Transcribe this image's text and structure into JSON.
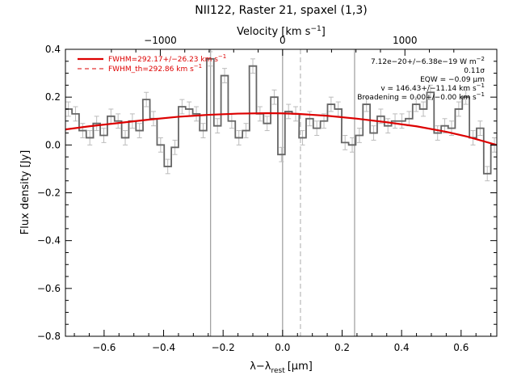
{
  "chart_data": {
    "type": "line",
    "title": "NII122, Raster 21, spaxel (1,3)",
    "xlabel": "λ−λ",
    "xlabel_sub": "rest",
    "xlabel_unit": "[μm]",
    "ylabel": "Flux density [Jy]",
    "top_axis_label": "Velocity [km s",
    "top_axis_label_sup": "−1",
    "top_axis_label_end": "]",
    "xlim": [
      -0.73,
      0.72
    ],
    "ylim": [
      -0.8,
      0.4
    ],
    "x_ticks": [
      -0.6,
      -0.4,
      -0.2,
      0.0,
      0.2,
      0.4,
      0.6
    ],
    "x_tick_labels": [
      "−0.6",
      "−0.4",
      "−0.2",
      "0.0",
      "0.2",
      "0.4",
      "0.6"
    ],
    "y_ticks": [
      -0.8,
      -0.6,
      -0.4,
      -0.2,
      0.0,
      0.2,
      0.4
    ],
    "y_tick_labels": [
      "−0.8",
      "−0.6",
      "−0.4",
      "−0.2",
      "0.0",
      "0.2",
      "0.4"
    ],
    "top_ticks_um": [
      -0.4111,
      0.0,
      0.4111
    ],
    "top_tick_labels": [
      "−1000",
      "0",
      "1000"
    ],
    "vertical_lines": [
      {
        "x": -0.242,
        "style": "solid",
        "color": "#888888"
      },
      {
        "x": 0.0,
        "style": "solid",
        "color": "#888888"
      },
      {
        "x": 0.06,
        "style": "dashed",
        "color": "#aaaaaa"
      },
      {
        "x": 0.242,
        "style": "solid",
        "color": "#888888"
      }
    ],
    "series": [
      {
        "name": "data",
        "kind": "step",
        "color": "#666666",
        "error_color": "#bbbbbb",
        "bin_width": 0.0238,
        "x": [
          -0.72,
          -0.696,
          -0.672,
          -0.648,
          -0.625,
          -0.601,
          -0.577,
          -0.553,
          -0.529,
          -0.505,
          -0.481,
          -0.458,
          -0.434,
          -0.41,
          -0.386,
          -0.362,
          -0.338,
          -0.314,
          -0.29,
          -0.267,
          -0.243,
          -0.219,
          -0.195,
          -0.171,
          -0.147,
          -0.123,
          -0.1,
          -0.076,
          -0.052,
          -0.028,
          -0.004,
          0.02,
          0.044,
          0.067,
          0.091,
          0.115,
          0.139,
          0.163,
          0.187,
          0.21,
          0.234,
          0.258,
          0.282,
          0.306,
          0.33,
          0.354,
          0.378,
          0.401,
          0.425,
          0.449,
          0.473,
          0.497,
          0.521,
          0.545,
          0.568,
          0.592,
          0.616,
          0.64,
          0.664,
          0.688,
          0.712
        ],
        "y": [
          0.15,
          0.13,
          0.06,
          0.03,
          0.09,
          0.04,
          0.12,
          0.1,
          0.03,
          0.1,
          0.06,
          0.19,
          0.11,
          0.0,
          -0.09,
          -0.01,
          0.16,
          0.15,
          0.13,
          0.06,
          0.36,
          0.08,
          0.29,
          0.1,
          0.03,
          0.06,
          0.33,
          0.13,
          0.09,
          0.2,
          -0.04,
          0.14,
          0.13,
          0.03,
          0.11,
          0.07,
          0.1,
          0.17,
          0.15,
          0.01,
          0.0,
          0.04,
          0.17,
          0.05,
          0.12,
          0.08,
          0.1,
          0.1,
          0.11,
          0.17,
          0.15,
          0.22,
          0.05,
          0.08,
          0.07,
          0.15,
          0.2,
          0.03,
          0.07,
          -0.12,
          0.0
        ],
        "err": [
          0.03,
          0.03,
          0.03,
          0.03,
          0.03,
          0.03,
          0.03,
          0.03,
          0.03,
          0.03,
          0.03,
          0.03,
          0.03,
          0.03,
          0.03,
          0.03,
          0.03,
          0.03,
          0.03,
          0.03,
          0.03,
          0.03,
          0.03,
          0.03,
          0.03,
          0.03,
          0.03,
          0.03,
          0.03,
          0.03,
          0.03,
          0.03,
          0.03,
          0.03,
          0.03,
          0.03,
          0.03,
          0.03,
          0.03,
          0.03,
          0.03,
          0.03,
          0.03,
          0.03,
          0.03,
          0.03,
          0.03,
          0.03,
          0.03,
          0.03,
          0.03,
          0.03,
          0.03,
          0.03,
          0.03,
          0.03,
          0.03,
          0.03,
          0.03,
          0.03,
          0.03
        ]
      },
      {
        "name": "fit",
        "kind": "line",
        "color": "#dd0000",
        "x": [
          -0.73,
          -0.65,
          -0.55,
          -0.45,
          -0.35,
          -0.25,
          -0.15,
          -0.05,
          0.0,
          0.05,
          0.15,
          0.25,
          0.35,
          0.45,
          0.55,
          0.62,
          0.72
        ],
        "y": [
          0.065,
          0.078,
          0.092,
          0.106,
          0.118,
          0.126,
          0.131,
          0.133,
          0.132,
          0.13,
          0.122,
          0.11,
          0.095,
          0.078,
          0.055,
          0.035,
          0.0
        ]
      }
    ],
    "legend": {
      "position": "top-left",
      "entries": [
        {
          "label": "FWHM=292.17+/−26.23 km s",
          "sup": "−1",
          "color": "#dd0000",
          "style": "solid"
        },
        {
          "label": "FWHM_th=292.86 km s",
          "sup": "−1",
          "color": "#dd0000",
          "style": "dashed"
        }
      ]
    },
    "annotations": {
      "position": "top-right",
      "lines": [
        {
          "text": "7.12e−20+/−6.38e−19 W m",
          "sup": "−2"
        },
        {
          "text": "0.11σ",
          "sup": ""
        },
        {
          "text": "EQW = −0.09 μm",
          "sup": ""
        },
        {
          "text": "v = 146.43+/−11.14 km s",
          "sup": "−1"
        },
        {
          "text": "Broadening = 0.00+/−0.00 km s",
          "sup": "−1"
        }
      ]
    }
  }
}
